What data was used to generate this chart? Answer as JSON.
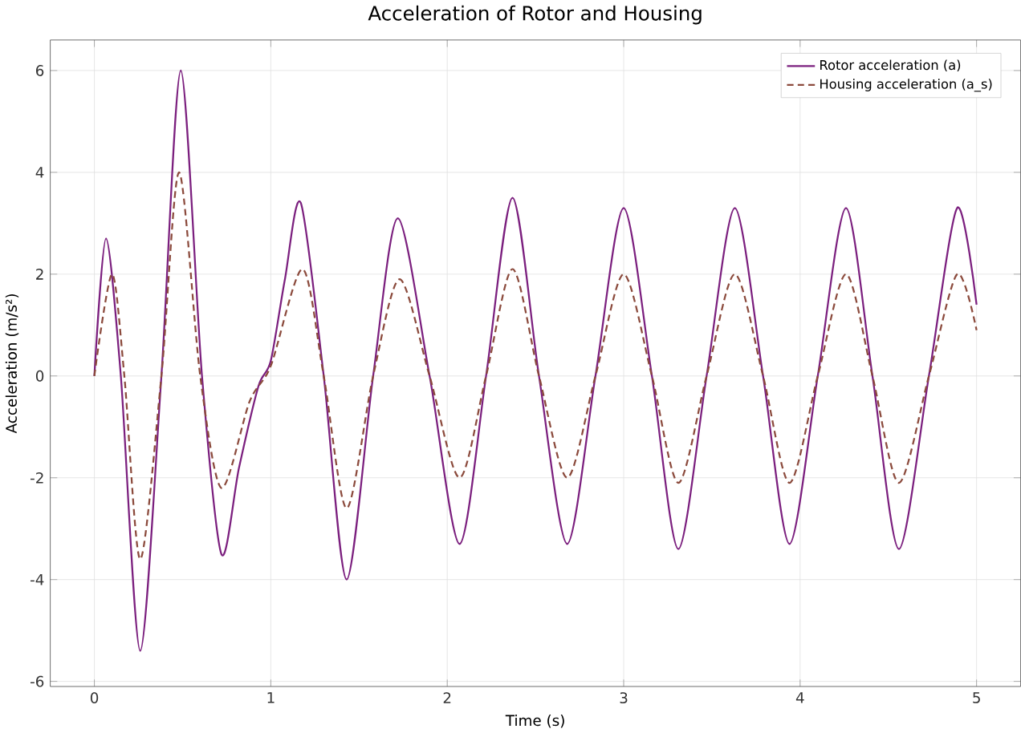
{
  "chart_data": {
    "type": "line",
    "title": "Acceleration of Rotor and Housing",
    "xlabel": "Time (s)",
    "ylabel": "Acceleration (m/s²)",
    "xlim": [
      -0.25,
      5.25
    ],
    "ylim": [
      -6.1,
      6.6
    ],
    "xticks": [
      0,
      1,
      2,
      3,
      4,
      5
    ],
    "yticks": [
      -6,
      -4,
      -2,
      0,
      2,
      4,
      6
    ],
    "grid": true,
    "legend": "top right",
    "marker": "none",
    "series": [
      {
        "name": "Rotor acceleration (a)",
        "color": "#7b1f7e",
        "line_style": "solid",
        "x": [
          0,
          0.066,
          0.15,
          0.26,
          0.38,
          0.49,
          0.61,
          0.72,
          0.82,
          0.93,
          1.0,
          1.08,
          1.17,
          1.3,
          1.43,
          1.58,
          1.72,
          1.9,
          2.07,
          2.22,
          2.37,
          2.52,
          2.68,
          2.84,
          3.0,
          3.16,
          3.31,
          3.47,
          3.63,
          3.79,
          3.94,
          4.1,
          4.26,
          4.41,
          4.56,
          4.73,
          4.89,
          5.0
        ],
        "values": [
          0,
          2.7,
          0,
          -5.4,
          0,
          6.0,
          0,
          -3.5,
          -1.8,
          -0.2,
          0.3,
          1.9,
          3.4,
          0,
          -4.0,
          0,
          3.1,
          0,
          -3.3,
          0,
          3.5,
          0,
          -3.3,
          0,
          3.3,
          0,
          -3.4,
          0,
          3.3,
          0,
          -3.3,
          0,
          3.3,
          0,
          -3.4,
          0,
          3.3,
          1.4
        ]
      },
      {
        "name": "Housing acceleration (a_s)",
        "color": "#8b4a3c",
        "line_style": "dashed",
        "x": [
          0,
          0.1,
          0.17,
          0.26,
          0.38,
          0.48,
          0.6,
          0.72,
          0.88,
          1.0,
          1.18,
          1.3,
          1.43,
          1.58,
          1.73,
          1.9,
          2.07,
          2.22,
          2.37,
          2.52,
          2.68,
          2.84,
          3.0,
          3.16,
          3.31,
          3.47,
          3.63,
          3.79,
          3.94,
          4.1,
          4.26,
          4.41,
          4.56,
          4.73,
          4.89,
          5.0
        ],
        "values": [
          0,
          2.0,
          0,
          -3.6,
          0,
          4.0,
          0,
          -2.2,
          -0.5,
          0.2,
          2.1,
          0,
          -2.6,
          0,
          1.9,
          0,
          -2.0,
          0,
          2.1,
          0,
          -2.0,
          0,
          2.0,
          0,
          -2.1,
          0,
          2.0,
          0,
          -2.1,
          0,
          2.0,
          0,
          -2.1,
          0,
          2.0,
          0.9
        ]
      }
    ]
  }
}
